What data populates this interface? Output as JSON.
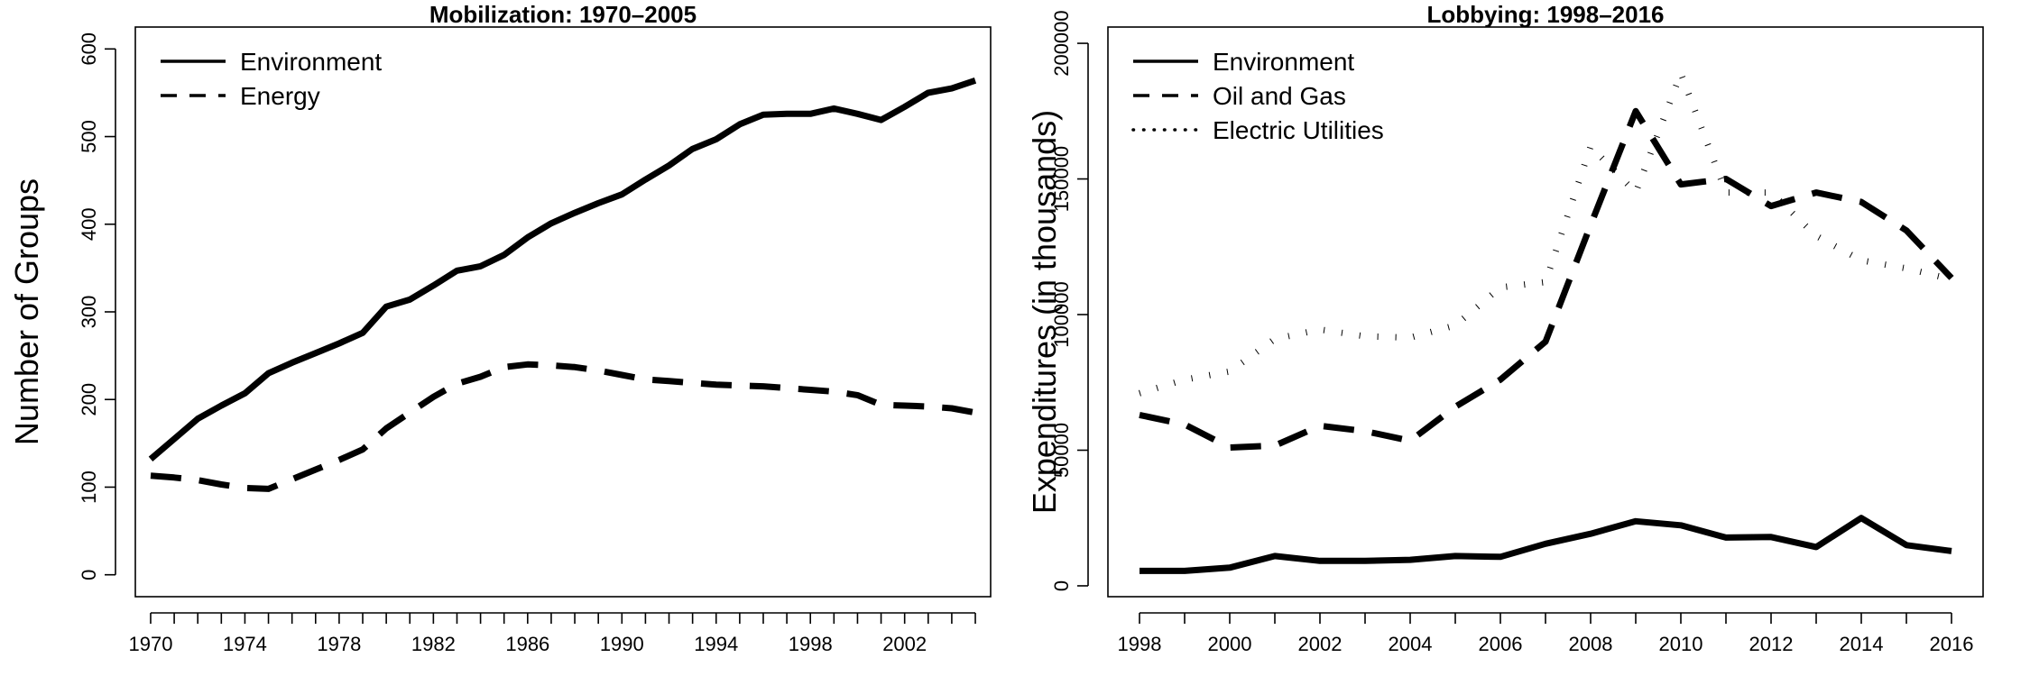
{
  "chart_data": [
    {
      "type": "line",
      "title": "Mobilization: 1970–2005",
      "xlabel": "",
      "ylabel": "Number of Groups",
      "xlim": [
        1969.35,
        2005.65
      ],
      "ylim": [
        -25,
        625
      ],
      "x_major_ticks": [
        1970,
        1974,
        1978,
        1982,
        1986,
        1990,
        1994,
        1998,
        2002
      ],
      "x_minor_ticks": [
        1971,
        1972,
        1973,
        1975,
        1976,
        1977,
        1979,
        1980,
        1981,
        1983,
        1984,
        1985,
        1987,
        1988,
        1989,
        1991,
        1992,
        1993,
        1995,
        1996,
        1997,
        1999,
        2000,
        2001,
        2003,
        2004,
        2005
      ],
      "y_ticks": [
        0,
        100,
        200,
        300,
        400,
        500,
        600
      ],
      "grid": false,
      "legend_position": "top-left",
      "series": [
        {
          "name": "Environment",
          "style": "solid",
          "x": [
            1970,
            1971,
            1972,
            1973,
            1974,
            1975,
            1976,
            1977,
            1978,
            1979,
            1980,
            1981,
            1982,
            1983,
            1984,
            1985,
            1986,
            1987,
            1988,
            1989,
            1990,
            1991,
            1992,
            1993,
            1994,
            1995,
            1996,
            1997,
            1998,
            1999,
            2000,
            2001,
            2002,
            2003,
            2004,
            2005
          ],
          "values": [
            132,
            155,
            178,
            193,
            207,
            230,
            242,
            253,
            264,
            276,
            306,
            314,
            330,
            347,
            352,
            365,
            385,
            401,
            413,
            424,
            434,
            451,
            467,
            486,
            497,
            514,
            525,
            526,
            526,
            532,
            526,
            519,
            534,
            550,
            555,
            564
          ]
        },
        {
          "name": "Energy",
          "style": "dashed",
          "x": [
            1970,
            1971,
            1972,
            1973,
            1974,
            1975,
            1976,
            1977,
            1978,
            1979,
            1980,
            1981,
            1982,
            1983,
            1984,
            1985,
            1986,
            1987,
            1988,
            1989,
            1990,
            1991,
            1992,
            1993,
            1994,
            1995,
            1996,
            1997,
            1998,
            1999,
            2000,
            2001,
            2002,
            2003,
            2004,
            2005
          ],
          "values": [
            113,
            111,
            108,
            103,
            99,
            98,
            109,
            120,
            131,
            143,
            167,
            185,
            203,
            218,
            226,
            237,
            240,
            239,
            237,
            233,
            228,
            223,
            221,
            219,
            217,
            216,
            215,
            213,
            211,
            209,
            205,
            194,
            193,
            192,
            190,
            185
          ]
        }
      ]
    },
    {
      "type": "line",
      "title": "Lobbying: 1998–2016",
      "xlabel": "",
      "ylabel": "Expenditures (in thousands)",
      "xlim": [
        1997.3,
        2016.7
      ],
      "ylim": [
        -4000,
        206000
      ],
      "x_major_ticks": [
        1998,
        2000,
        2002,
        2004,
        2006,
        2008,
        2010,
        2012,
        2014,
        2016
      ],
      "x_minor_ticks": [
        1999,
        2001,
        2003,
        2005,
        2007,
        2009,
        2011,
        2013,
        2015
      ],
      "y_ticks": [
        0,
        50000,
        100000,
        150000,
        200000
      ],
      "grid": false,
      "legend_position": "top-left",
      "series": [
        {
          "name": "Environment",
          "style": "solid",
          "x": [
            1998,
            1999,
            2000,
            2001,
            2002,
            2003,
            2004,
            2005,
            2006,
            2007,
            2008,
            2009,
            2010,
            2011,
            2012,
            2013,
            2014,
            2015,
            2016
          ],
          "values": [
            5500,
            5500,
            6700,
            11000,
            9200,
            9200,
            9600,
            11000,
            10700,
            15500,
            19200,
            23800,
            22300,
            17800,
            18000,
            14300,
            25000,
            15000,
            12800
          ]
        },
        {
          "name": "Oil and Gas",
          "style": "dashed",
          "x": [
            1998,
            1999,
            2000,
            2001,
            2002,
            2003,
            2004,
            2005,
            2006,
            2007,
            2008,
            2009,
            2010,
            2011,
            2012,
            2013,
            2014,
            2015,
            2016
          ],
          "values": [
            63000,
            59500,
            51000,
            51700,
            59000,
            57000,
            53500,
            66000,
            76000,
            90000,
            133000,
            175000,
            148000,
            150000,
            140000,
            145000,
            141500,
            131000,
            113500
          ]
        },
        {
          "name": "Electric Utilities",
          "style": "dotted",
          "x": [
            1998,
            1999,
            2000,
            2001,
            2002,
            2003,
            2004,
            2005,
            2006,
            2007,
            2008,
            2009,
            2010,
            2011,
            2012,
            2013,
            2014,
            2015,
            2016
          ],
          "values": [
            71000,
            76000,
            79000,
            91000,
            94500,
            92000,
            91500,
            96000,
            110000,
            112000,
            162000,
            145000,
            189000,
            145000,
            145000,
            129000,
            120000,
            117000,
            113000
          ]
        }
      ]
    }
  ]
}
